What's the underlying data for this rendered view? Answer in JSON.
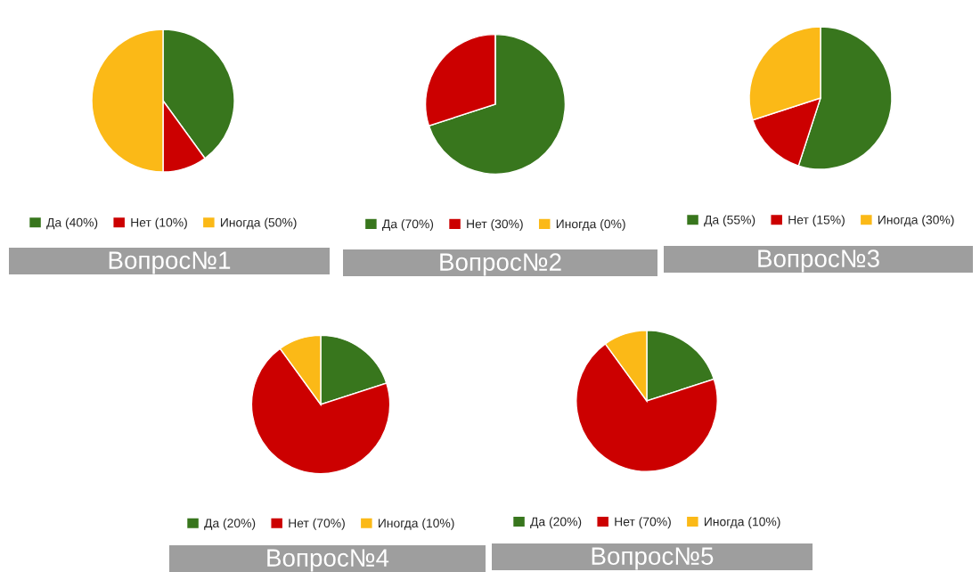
{
  "chart_data": [
    {
      "type": "pie",
      "title": "Вопрос№1",
      "categories": [
        "Да (40%)",
        "Нет (10%)",
        "Иногда (50%)"
      ],
      "values": [
        40,
        10,
        50
      ],
      "colors": [
        "#38761d",
        "#cc0000",
        "#fbb917"
      ],
      "legend": "bottom"
    },
    {
      "type": "pie",
      "title": "Вопрос№2",
      "categories": [
        "Да (70%)",
        "Нет (30%)",
        "Иногда (0%)"
      ],
      "values": [
        70,
        30,
        0
      ],
      "colors": [
        "#38761d",
        "#cc0000",
        "#fbb917"
      ],
      "legend": "bottom"
    },
    {
      "type": "pie",
      "title": "Вопрос№3",
      "categories": [
        "Да (55%)",
        "Нет (15%)",
        "Иногда (30%)"
      ],
      "values": [
        55,
        15,
        30
      ],
      "colors": [
        "#38761d",
        "#cc0000",
        "#fbb917"
      ],
      "legend": "bottom"
    },
    {
      "type": "pie",
      "title": "Вопрос№4",
      "categories": [
        "Да (20%)",
        "Нет (70%)",
        "Иногда (10%)"
      ],
      "values": [
        20,
        70,
        10
      ],
      "colors": [
        "#38761d",
        "#cc0000",
        "#fbb917"
      ],
      "legend": "bottom"
    },
    {
      "type": "pie",
      "title": "Вопрос№5",
      "categories": [
        "Да (20%)",
        "Нет (70%)",
        "Иногда (10%)"
      ],
      "values": [
        20,
        70,
        10
      ],
      "colors": [
        "#38761d",
        "#cc0000",
        "#fbb917"
      ],
      "legend": "bottom"
    }
  ]
}
